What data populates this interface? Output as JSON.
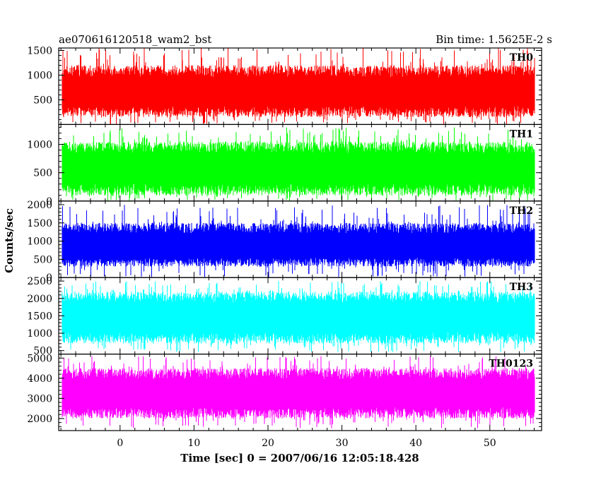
{
  "chart_data": {
    "type": "line",
    "title_left": "ae070616120518_wam2_bst",
    "title_right": "Bin time: 1.5625E-2 s",
    "xlabel": "Time [sec] 0 = 2007/06/16 12:05:18.428",
    "ylabel": "Counts/sec",
    "xlim": [
      -8.3,
      57.0
    ],
    "x_data_range": [
      -7.8,
      56.0
    ],
    "xticks": [
      0,
      10,
      20,
      30,
      40,
      50
    ],
    "grid": false,
    "legend": "none",
    "panels": [
      {
        "name": "TH0",
        "color": "#ff0000",
        "ylim": [
          0,
          1550
        ],
        "yticks": [
          500,
          1000,
          1500
        ],
        "typical_range": [
          150,
          1200
        ],
        "mean": 650,
        "max": 1550,
        "min": 0
      },
      {
        "name": "TH1",
        "color": "#00ff00",
        "ylim": [
          0,
          1350
        ],
        "yticks": [
          0,
          500,
          1000
        ],
        "typical_range": [
          100,
          1050
        ],
        "mean": 560,
        "max": 1300,
        "min": 0
      },
      {
        "name": "TH2",
        "color": "#0000ff",
        "ylim": [
          0,
          2100
        ],
        "yticks": [
          0,
          500,
          1000,
          1500,
          2000
        ],
        "typical_range": [
          300,
          1500
        ],
        "mean": 850,
        "max": 2000,
        "min": 0
      },
      {
        "name": "TH3",
        "color": "#00ffff",
        "ylim": [
          400,
          2600
        ],
        "yticks": [
          500,
          1000,
          1500,
          2000,
          2500
        ],
        "typical_range": [
          700,
          2200
        ],
        "mean": 1450,
        "max": 2500,
        "min": 450
      },
      {
        "name": "TH0123",
        "color": "#ff00ff",
        "ylim": [
          1400,
          5200
        ],
        "yticks": [
          2000,
          3000,
          4000,
          5000
        ],
        "typical_range": [
          2000,
          4500
        ],
        "mean": 3250,
        "max": 5100,
        "min": 1500
      }
    ]
  }
}
